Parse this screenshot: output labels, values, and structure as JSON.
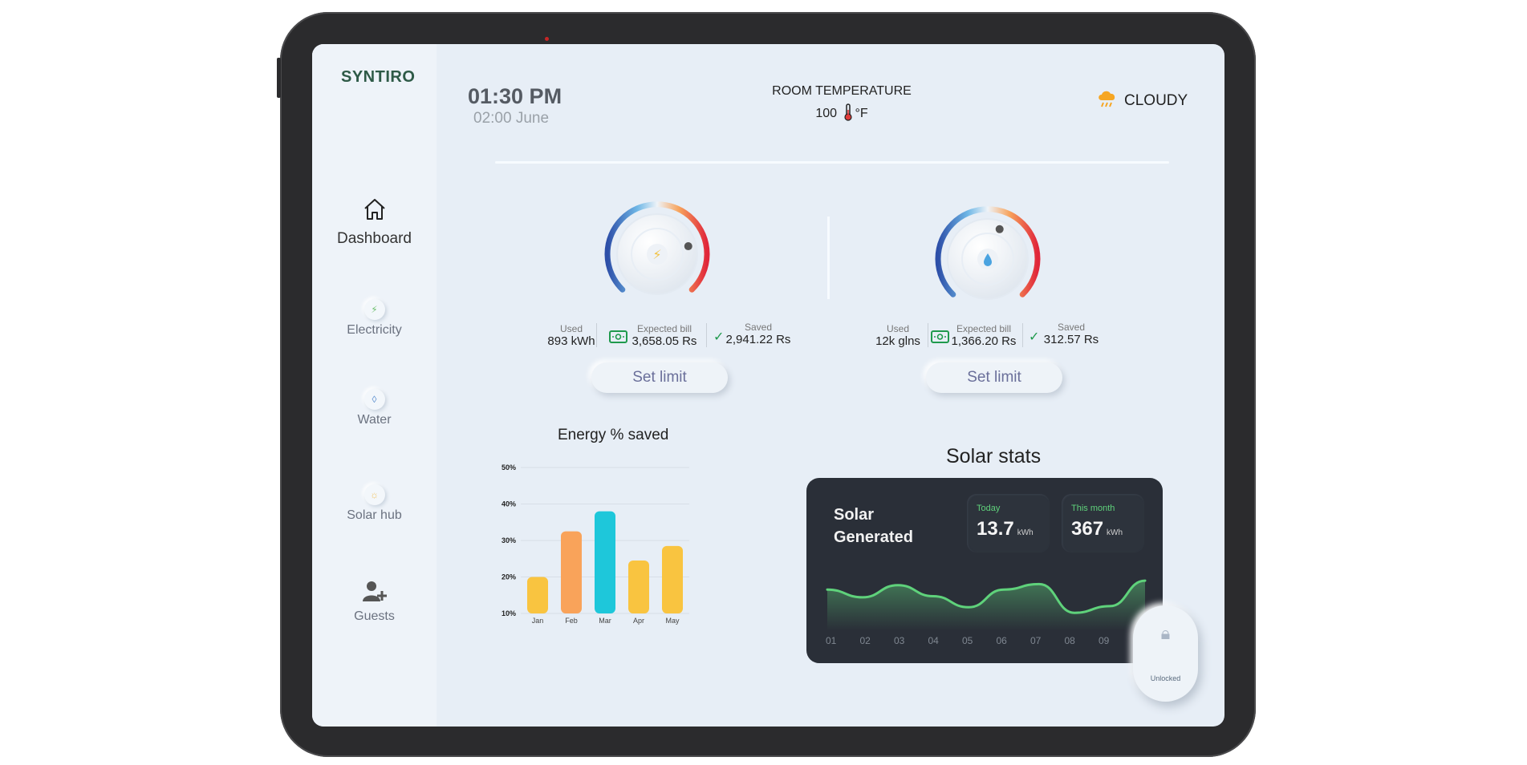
{
  "app": {
    "brand": "SYNTIRO"
  },
  "header": {
    "time": "01:30 PM",
    "date": "02:00 June",
    "room_label": "ROOM TEMPERATURE",
    "room_value": "100",
    "room_unit": "°F",
    "weather": "CLOUDY"
  },
  "nav": [
    {
      "label": "Dashboard",
      "icon": "house-icon"
    },
    {
      "label": "Electricity",
      "icon": "bolt-icon"
    },
    {
      "label": "Water",
      "icon": "water-drop-icon"
    },
    {
      "label": "Solar hub",
      "icon": "sun-icon"
    },
    {
      "label": "Guests",
      "icon": "add-user-icon"
    }
  ],
  "electricity": {
    "used_label": "Used",
    "used": "893 kWh",
    "bill_label": "Expected bill",
    "bill": "3,658.05 Rs",
    "saved_label": "Saved",
    "saved": "2,941.22  Rs",
    "set_limit": "Set limit",
    "dial_level": 0.78
  },
  "water": {
    "used_label": "Used",
    "used": "12k glns",
    "bill_label": "Expected bill",
    "bill": "1,366.20 Rs",
    "saved_label": "Saved",
    "saved": "312.57 Rs",
    "set_limit": "Set limit",
    "dial_level": 0.58
  },
  "chart_data": {
    "type": "bar",
    "title": "Energy % saved",
    "categories": [
      "Jan",
      "Feb",
      "Mar",
      "Apr",
      "May"
    ],
    "values": [
      20,
      32.5,
      38,
      24.5,
      28.5
    ],
    "colors": [
      "#f9c440",
      "#f9a35a",
      "#1ec7da",
      "#f9c440",
      "#f9c440"
    ],
    "ylim": [
      10,
      50
    ],
    "yticks": [
      "10%",
      "20%",
      "30%",
      "40%",
      "50%"
    ],
    "ytick_values": [
      10,
      20,
      30,
      40,
      50
    ]
  },
  "solar": {
    "section_title": "Solar stats",
    "card_title_1": "Solar",
    "card_title_2": "Generated",
    "today_label": "Today",
    "today_value": "13.7",
    "today_unit": "kWh",
    "month_label": "This month",
    "month_value": "367",
    "month_unit": "kWh",
    "x_labels": [
      "01",
      "02",
      "03",
      "04",
      "05",
      "06",
      "07",
      "08",
      "09"
    ],
    "curve": [
      0.62,
      0.48,
      0.7,
      0.5,
      0.3,
      0.62,
      0.72,
      0.2,
      0.32,
      0.78
    ]
  },
  "lock": {
    "label": "Unlocked"
  },
  "colors": {
    "accent_green": "#5fd27b",
    "card_bg": "#2a2f38"
  }
}
